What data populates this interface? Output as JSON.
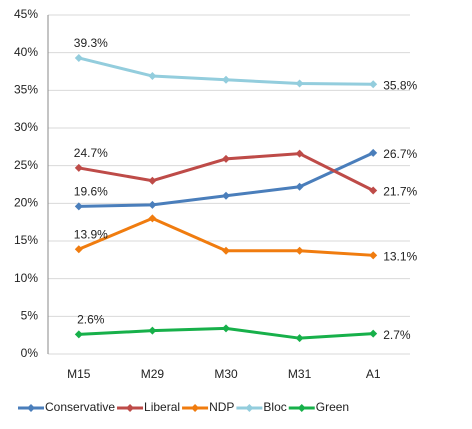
{
  "chart_data": {
    "type": "line",
    "categories": [
      "M15",
      "M29",
      "M30",
      "M31",
      "A1"
    ],
    "ylim": [
      0,
      45
    ],
    "yticks": [
      {
        "value": 0,
        "label": "0%"
      },
      {
        "value": 5,
        "label": "5%"
      },
      {
        "value": 10,
        "label": "10%"
      },
      {
        "value": 15,
        "label": "15%"
      },
      {
        "value": 20,
        "label": "20%"
      },
      {
        "value": 25,
        "label": "25%"
      },
      {
        "value": 30,
        "label": "30%"
      },
      {
        "value": 35,
        "label": "35%"
      },
      {
        "value": 40,
        "label": "40%"
      },
      {
        "value": 45,
        "label": "45%"
      }
    ],
    "grid": true,
    "legend": "bottom",
    "series": [
      {
        "name": "Conservative",
        "color": "#4a7ebb",
        "values": [
          19.6,
          19.8,
          21.0,
          22.2,
          26.7
        ],
        "value_labels": [
          "19.6%",
          null,
          null,
          null,
          "26.7%"
        ]
      },
      {
        "name": "Liberal",
        "color": "#be4b48",
        "values": [
          24.7,
          23.0,
          25.9,
          26.6,
          21.7
        ],
        "value_labels": [
          "24.7%",
          null,
          null,
          null,
          "21.7%"
        ]
      },
      {
        "name": "NDP",
        "color": "#f07c0f",
        "values": [
          13.9,
          18.0,
          13.7,
          13.7,
          13.1
        ],
        "value_labels": [
          "13.9%",
          null,
          null,
          null,
          "13.1%"
        ]
      },
      {
        "name": "Bloc",
        "color": "#93cddd",
        "values": [
          39.3,
          36.9,
          36.4,
          35.9,
          35.8
        ],
        "value_labels": [
          "39.3%",
          null,
          null,
          null,
          "35.8%"
        ]
      },
      {
        "name": "Green",
        "color": "#17b04a",
        "values": [
          2.6,
          3.1,
          3.4,
          2.1,
          2.7
        ],
        "value_labels": [
          "2.6%",
          null,
          null,
          null,
          "2.7%"
        ]
      }
    ]
  }
}
